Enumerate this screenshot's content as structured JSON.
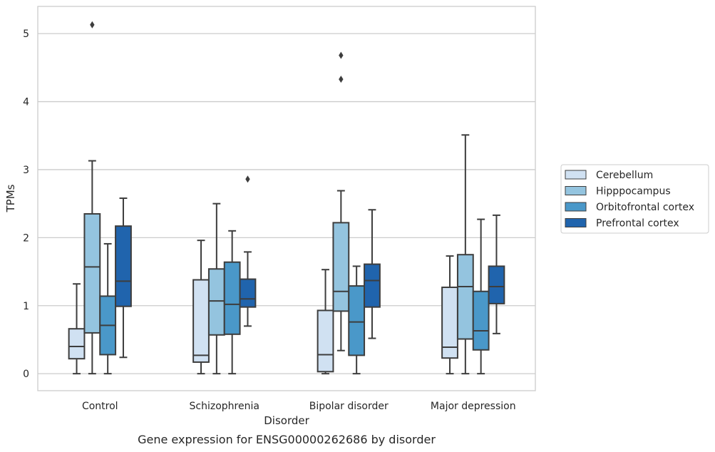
{
  "chart_data": {
    "type": "box",
    "caption": "Gene expression for ENSG00000262686 by disorder",
    "xlabel": "Disorder",
    "ylabel": "TPMs",
    "ylim": [
      -0.25,
      5.4
    ],
    "yticks": [
      "0",
      "1",
      "2",
      "3",
      "4",
      "5"
    ],
    "grid": true,
    "legend_position": "right",
    "categories": [
      "Control",
      "Schizophrenia",
      "Bipolar disorder",
      "Major depression"
    ],
    "series": [
      {
        "name": "Cerebellum",
        "color": "#d0e1f2",
        "boxes": [
          {
            "whisker_low": 0.0,
            "q1": 0.22,
            "median": 0.4,
            "q3": 0.66,
            "whisker_high": 1.32,
            "outliers": []
          },
          {
            "whisker_low": 0.0,
            "q1": 0.17,
            "median": 0.27,
            "q3": 1.38,
            "whisker_high": 1.96,
            "outliers": []
          },
          {
            "whisker_low": 0.0,
            "q1": 0.03,
            "median": 0.28,
            "q3": 0.93,
            "whisker_high": 1.53,
            "outliers": []
          },
          {
            "whisker_low": 0.0,
            "q1": 0.23,
            "median": 0.39,
            "q3": 1.27,
            "whisker_high": 1.73,
            "outliers": []
          }
        ]
      },
      {
        "name": "Hipppocampus",
        "color": "#94c4df",
        "boxes": [
          {
            "whisker_low": 0.0,
            "q1": 0.6,
            "median": 1.57,
            "q3": 2.35,
            "whisker_high": 3.13,
            "outliers": [
              5.13
            ]
          },
          {
            "whisker_low": 0.0,
            "q1": 0.57,
            "median": 1.07,
            "q3": 1.54,
            "whisker_high": 2.5,
            "outliers": []
          },
          {
            "whisker_low": 0.34,
            "q1": 0.92,
            "median": 1.21,
            "q3": 2.22,
            "whisker_high": 2.69,
            "outliers": [
              4.33,
              4.68
            ]
          },
          {
            "whisker_low": 0.0,
            "q1": 0.51,
            "median": 1.28,
            "q3": 1.75,
            "whisker_high": 3.51,
            "outliers": []
          }
        ]
      },
      {
        "name": "Orbitofrontal cortex",
        "color": "#4a98c9",
        "boxes": [
          {
            "whisker_low": 0.0,
            "q1": 0.28,
            "median": 0.71,
            "q3": 1.14,
            "whisker_high": 1.91,
            "outliers": []
          },
          {
            "whisker_low": 0.0,
            "q1": 0.58,
            "median": 1.02,
            "q3": 1.64,
            "whisker_high": 2.1,
            "outliers": []
          },
          {
            "whisker_low": 0.0,
            "q1": 0.27,
            "median": 0.76,
            "q3": 1.29,
            "whisker_high": 1.58,
            "outliers": []
          },
          {
            "whisker_low": 0.0,
            "q1": 0.35,
            "median": 0.63,
            "q3": 1.21,
            "whisker_high": 2.27,
            "outliers": []
          }
        ]
      },
      {
        "name": "Prefrontal cortex",
        "color": "#2064ad",
        "boxes": [
          {
            "whisker_low": 0.24,
            "q1": 0.99,
            "median": 1.36,
            "q3": 2.17,
            "whisker_high": 2.58,
            "outliers": []
          },
          {
            "whisker_low": 0.7,
            "q1": 0.98,
            "median": 1.1,
            "q3": 1.39,
            "whisker_high": 1.79,
            "outliers": [
              2.86
            ]
          },
          {
            "whisker_low": 0.52,
            "q1": 0.98,
            "median": 1.37,
            "q3": 1.61,
            "whisker_high": 2.41,
            "outliers": []
          },
          {
            "whisker_low": 0.59,
            "q1": 1.03,
            "median": 1.28,
            "q3": 1.58,
            "whisker_high": 2.33,
            "outliers": []
          }
        ]
      }
    ]
  }
}
